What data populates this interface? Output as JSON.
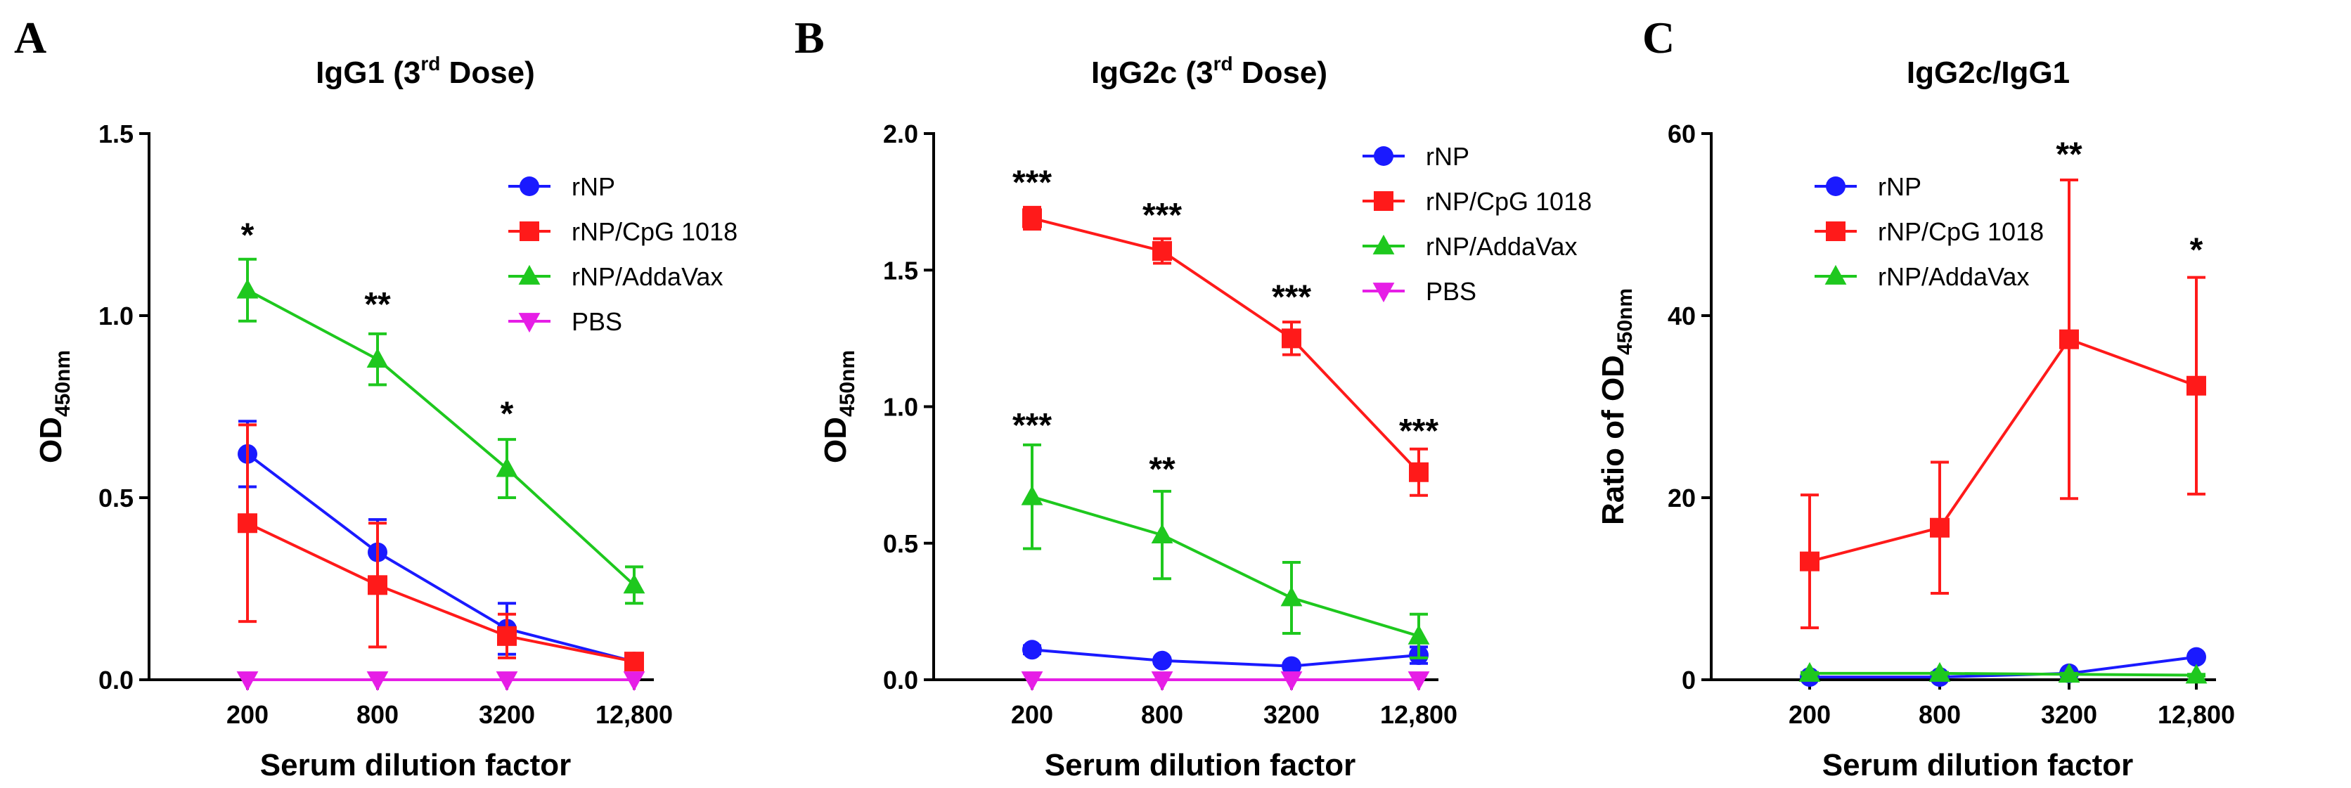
{
  "chart_data": [
    {
      "type": "line",
      "panel": "A",
      "title_main": "IgG1 (3",
      "title_sup": "rd",
      "title_end": " Dose)",
      "ylabel_main": "OD",
      "ylabel_sub": "450nm",
      "ylabel_prefix": "",
      "xlabel": "Serum dilution factor",
      "categories": [
        "200",
        "800",
        "3200",
        "12,800"
      ],
      "ylim": [
        0,
        1.5
      ],
      "yticks": [
        0,
        0.5,
        1.0,
        1.5
      ],
      "ytick_labels": [
        "0.0",
        "0.5",
        "1.0",
        "1.5"
      ],
      "legend_position": "top-right",
      "series": [
        {
          "name": "rNP",
          "color": "#1a1aff",
          "marker": "circle",
          "values": [
            0.62,
            0.35,
            0.14,
            0.05
          ],
          "errors": [
            0.09,
            0.09,
            0.07,
            0.01
          ]
        },
        {
          "name": "rNP/CpG 1018",
          "color": "#ff1a1a",
          "marker": "square",
          "values": [
            0.43,
            0.26,
            0.12,
            0.05
          ],
          "errors": [
            0.27,
            0.17,
            0.06,
            0.01
          ]
        },
        {
          "name": "rNP/AddaVax",
          "color": "#1ec81e",
          "marker": "triangle",
          "values": [
            1.07,
            0.88,
            0.58,
            0.26
          ],
          "errors": [
            0.085,
            0.07,
            0.08,
            0.05
          ]
        },
        {
          "name": "PBS",
          "color": "#e61ee6",
          "marker": "triangle-down",
          "values": [
            0.0,
            0.0,
            0.0,
            0.0
          ],
          "errors": [
            0,
            0,
            0,
            0
          ]
        }
      ],
      "annotations": [
        {
          "category": "200",
          "value": 1.19,
          "text": "*"
        },
        {
          "category": "800",
          "value": 1.0,
          "text": "**"
        },
        {
          "category": "3200",
          "value": 0.7,
          "text": "*"
        }
      ]
    },
    {
      "type": "line",
      "panel": "B",
      "title_main": "IgG2c (3",
      "title_sup": "rd",
      "title_end": " Dose)",
      "ylabel_main": "OD",
      "ylabel_sub": "450nm",
      "ylabel_prefix": "",
      "xlabel": "Serum dilution factor",
      "categories": [
        "200",
        "800",
        "3200",
        "12,800"
      ],
      "ylim": [
        0,
        2.0
      ],
      "yticks": [
        0,
        0.5,
        1.0,
        1.5,
        2.0
      ],
      "ytick_labels": [
        "0.0",
        "0.5",
        "1.0",
        "1.5",
        "2.0"
      ],
      "legend_position": "top-right",
      "series": [
        {
          "name": "rNP",
          "color": "#1a1aff",
          "marker": "circle",
          "values": [
            0.11,
            0.07,
            0.05,
            0.09
          ],
          "errors": [
            0.015,
            0.01,
            0.01,
            0.03
          ]
        },
        {
          "name": "rNP/CpG 1018",
          "color": "#ff1a1a",
          "marker": "square",
          "values": [
            1.69,
            1.57,
            1.25,
            0.76
          ],
          "errors": [
            0.04,
            0.045,
            0.06,
            0.085
          ]
        },
        {
          "name": "rNP/AddaVax",
          "color": "#1ec81e",
          "marker": "triangle",
          "values": [
            0.67,
            0.53,
            0.3,
            0.16
          ],
          "errors": [
            0.19,
            0.16,
            0.13,
            0.08
          ]
        },
        {
          "name": "PBS",
          "color": "#e61ee6",
          "marker": "triangle-down",
          "values": [
            0.0,
            0.0,
            0.0,
            0.0
          ],
          "errors": [
            0,
            0,
            0,
            0
          ]
        }
      ],
      "annotations": [
        {
          "category": "200",
          "value": 1.78,
          "text": "***"
        },
        {
          "category": "800",
          "value": 1.66,
          "text": "***"
        },
        {
          "category": "3200",
          "value": 1.36,
          "text": "***"
        },
        {
          "category": "12,800",
          "value": 0.87,
          "text": "***"
        },
        {
          "category": "200",
          "value": 0.89,
          "text": "***"
        },
        {
          "category": "800",
          "value": 0.73,
          "text": "**"
        }
      ]
    },
    {
      "type": "line",
      "panel": "C",
      "title_main": "IgG2c/IgG1",
      "title_sup": "",
      "title_end": "",
      "ylabel_main": "OD",
      "ylabel_sub": "450nm",
      "ylabel_prefix": "Ratio of ",
      "xlabel": "Serum dilution factor",
      "categories": [
        "200",
        "800",
        "3200",
        "12,800"
      ],
      "ylim": [
        0,
        60
      ],
      "yticks": [
        0,
        20,
        40,
        60
      ],
      "ytick_labels": [
        "0",
        "20",
        "40",
        "60"
      ],
      "legend_position": "top-left",
      "series": [
        {
          "name": "rNP",
          "color": "#1a1aff",
          "marker": "circle",
          "values": [
            0.3,
            0.3,
            0.7,
            2.5
          ],
          "errors": [
            0.1,
            0.1,
            0.2,
            0.3
          ]
        },
        {
          "name": "rNP/CpG 1018",
          "color": "#ff1a1a",
          "marker": "square",
          "values": [
            13,
            16.7,
            37.4,
            32.3
          ],
          "errors": [
            7.3,
            7.2,
            17.5,
            11.9
          ]
        },
        {
          "name": "rNP/AddaVax",
          "color": "#1ec81e",
          "marker": "triangle",
          "values": [
            0.7,
            0.7,
            0.6,
            0.5
          ],
          "errors": [
            0.1,
            0.1,
            0.1,
            0.1
          ]
        }
      ],
      "annotations": [
        {
          "category": "3200",
          "value": 56.5,
          "text": "**"
        },
        {
          "category": "12,800",
          "value": 46,
          "text": "*"
        }
      ]
    }
  ]
}
